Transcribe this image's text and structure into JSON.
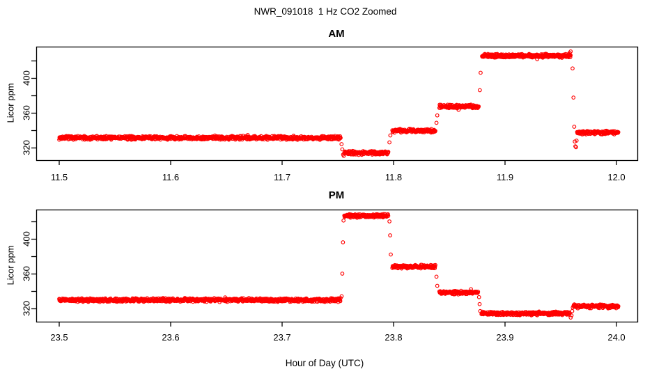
{
  "chart_data": {
    "type": "scatter",
    "title": "NWR_091018  1 Hz CO2 Zoomed",
    "xlabel": "Hour of Day (UTC)",
    "point_color": "#FF0000",
    "axis_color": "#000000",
    "point_style": "open-circle",
    "sample_rate_hz": 1,
    "noise_ppm": 2.4,
    "panels": [
      {
        "label": "AM",
        "ylabel": "Licor ppm",
        "xlim": [
          11.5,
          12.0
        ],
        "ylim": [
          305,
          436
        ],
        "xticks": [
          11.5,
          11.6,
          11.7,
          11.8,
          11.9,
          12.0
        ],
        "xtick_labels": [
          "11.5",
          "11.6",
          "11.7",
          "11.8",
          "11.9",
          "12.0"
        ],
        "yticks": [
          320,
          340,
          360,
          380,
          400,
          420
        ],
        "labeled_yticks": [
          320,
          360,
          400
        ],
        "labeled_ytick_labels": [
          "320",
          "360",
          "400"
        ],
        "segments": [
          {
            "start": 11.5,
            "end": 11.7528,
            "ppm": 331.3
          },
          {
            "start": 11.7556,
            "end": 11.7956,
            "ppm": 314.0
          },
          {
            "start": 11.7989,
            "end": 11.8378,
            "ppm": 339.4
          },
          {
            "start": 11.8411,
            "end": 11.8767,
            "ppm": 367.4
          },
          {
            "start": 11.8794,
            "end": 11.9592,
            "ppm": 425.6
          },
          {
            "start": 11.9647,
            "end": 12.002,
            "ppm": 337.3
          }
        ],
        "transition_points": [
          [
            11.7533,
            324.0
          ],
          [
            11.754,
            318.0
          ],
          [
            11.7547,
            312.0
          ],
          [
            11.7553,
            310.5
          ],
          [
            11.7963,
            326.0
          ],
          [
            11.7971,
            334.0
          ],
          [
            11.8385,
            348.5
          ],
          [
            11.8392,
            357.0
          ],
          [
            11.8774,
            386.0
          ],
          [
            11.8781,
            406.0
          ],
          [
            11.957,
            427.5
          ],
          [
            11.958,
            429.0
          ],
          [
            11.9589,
            430.5
          ],
          [
            11.9606,
            411.0
          ],
          [
            11.9614,
            377.5
          ],
          [
            11.9621,
            344.0
          ],
          [
            11.9626,
            327.0
          ],
          [
            11.9631,
            321.5
          ],
          [
            11.9637,
            320.5
          ],
          [
            11.9642,
            328.0
          ]
        ]
      },
      {
        "label": "PM",
        "ylabel": "Licor ppm",
        "xlim": [
          23.5,
          24.0
        ],
        "ylim": [
          305,
          434
        ],
        "xticks": [
          23.5,
          23.6,
          23.7,
          23.8,
          23.9,
          24.0
        ],
        "xtick_labels": [
          "23.5",
          "23.6",
          "23.7",
          "23.8",
          "23.9",
          "24.0"
        ],
        "yticks": [
          320,
          340,
          360,
          380,
          400,
          420
        ],
        "labeled_yticks": [
          320,
          360,
          400
        ],
        "labeled_ytick_labels": [
          "320",
          "360",
          "400"
        ],
        "segments": [
          {
            "start": 23.5,
            "end": 23.7528,
            "ppm": 329.7
          },
          {
            "start": 23.7558,
            "end": 23.7956,
            "ppm": 426.4
          },
          {
            "start": 23.7989,
            "end": 23.8378,
            "ppm": 368.0
          },
          {
            "start": 23.8411,
            "end": 23.8761,
            "ppm": 338.4
          },
          {
            "start": 23.8789,
            "end": 23.9583,
            "ppm": 314.3
          },
          {
            "start": 23.9614,
            "end": 24.002,
            "ppm": 322.4
          }
        ],
        "transition_points": [
          [
            23.7534,
            334.0
          ],
          [
            23.754,
            360.0
          ],
          [
            23.7546,
            396.0
          ],
          [
            23.7551,
            421.0
          ],
          [
            23.7963,
            420.0
          ],
          [
            23.7969,
            404.0
          ],
          [
            23.7975,
            382.0
          ],
          [
            23.8385,
            356.5
          ],
          [
            23.8392,
            346.0
          ],
          [
            23.8767,
            333.0
          ],
          [
            23.8772,
            325.0
          ],
          [
            23.8778,
            317.0
          ],
          [
            23.9589,
            309.5
          ],
          [
            23.9597,
            312.0
          ],
          [
            23.9603,
            317.0
          ],
          [
            23.9608,
            321.0
          ]
        ]
      }
    ]
  }
}
